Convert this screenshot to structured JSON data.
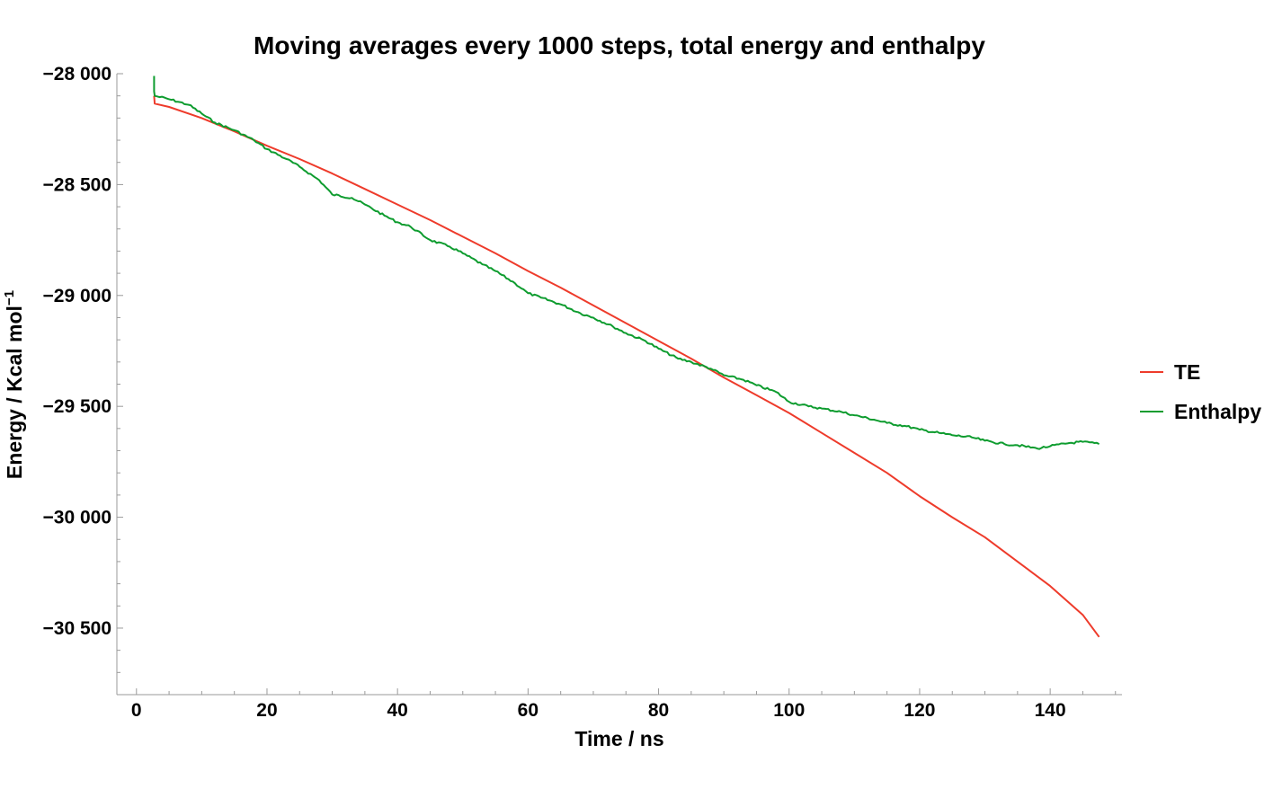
{
  "chart_data": {
    "type": "line",
    "title": "Moving averages every 1000 steps, total energy and enthalpy",
    "xlabel": "Time / ns",
    "ylabel": "Energy / Kcal mol",
    "ylabel_superscript": "−1",
    "xlim": [
      -3,
      151
    ],
    "ylim": [
      -30800,
      -28000
    ],
    "xticks": [
      {
        "value": 0,
        "label": "0"
      },
      {
        "value": 20,
        "label": "20"
      },
      {
        "value": 40,
        "label": "40"
      },
      {
        "value": 60,
        "label": "60"
      },
      {
        "value": 80,
        "label": "80"
      },
      {
        "value": 100,
        "label": "100"
      },
      {
        "value": 120,
        "label": "120"
      },
      {
        "value": 140,
        "label": "140"
      }
    ],
    "yticks": [
      {
        "value": -28000,
        "label": "−28 000"
      },
      {
        "value": -28500,
        "label": "−28 500"
      },
      {
        "value": -29000,
        "label": "−29 000"
      },
      {
        "value": -29500,
        "label": "−29 500"
      },
      {
        "value": -30000,
        "label": "−30 000"
      },
      {
        "value": -30500,
        "label": "−30 500"
      }
    ],
    "legend_position": "right",
    "grid": false,
    "series": [
      {
        "name": "TE",
        "color": "#ee3b2b",
        "x": [
          2.7,
          2.8,
          5,
          10,
          15,
          20,
          25,
          30,
          35,
          40,
          45,
          50,
          55,
          60,
          65,
          70,
          75,
          80,
          85,
          90,
          95,
          100,
          105,
          110,
          115,
          120,
          125,
          130,
          135,
          140,
          145,
          147.5
        ],
        "y": [
          -28100,
          -28135,
          -28150,
          -28200,
          -28260,
          -28325,
          -28385,
          -28450,
          -28520,
          -28590,
          -28660,
          -28735,
          -28810,
          -28890,
          -28965,
          -29045,
          -29125,
          -29205,
          -29285,
          -29370,
          -29450,
          -29530,
          -29620,
          -29710,
          -29800,
          -29905,
          -30000,
          -30090,
          -30200,
          -30310,
          -30440,
          -30540
        ]
      },
      {
        "name": "Enthalpy",
        "color": "#0e9c2f",
        "x": [
          2.7,
          2.7,
          2.8,
          5,
          8,
          10,
          12,
          15,
          18,
          20,
          23,
          25,
          28,
          30,
          33,
          35,
          38,
          40,
          42,
          45,
          48,
          50,
          53,
          55,
          58,
          60,
          62,
          65,
          68,
          70,
          73,
          75,
          78,
          80,
          83,
          85,
          88,
          90,
          93,
          95,
          98,
          100,
          103,
          105,
          108,
          110,
          113,
          115,
          118,
          120,
          123,
          125,
          128,
          130,
          133,
          135,
          138,
          140,
          143,
          145,
          147.5
        ],
        "y": [
          -28010,
          -28080,
          -28100,
          -28115,
          -28140,
          -28180,
          -28220,
          -28255,
          -28300,
          -28340,
          -28385,
          -28420,
          -28480,
          -28545,
          -28560,
          -28590,
          -28640,
          -28670,
          -28690,
          -28750,
          -28780,
          -28810,
          -28860,
          -28890,
          -28945,
          -28990,
          -29010,
          -29040,
          -29080,
          -29100,
          -29140,
          -29170,
          -29205,
          -29240,
          -29285,
          -29300,
          -29330,
          -29360,
          -29380,
          -29405,
          -29435,
          -29480,
          -29500,
          -29510,
          -29525,
          -29540,
          -29560,
          -29575,
          -29590,
          -29605,
          -29620,
          -29630,
          -29640,
          -29655,
          -29670,
          -29675,
          -29690,
          -29680,
          -29665,
          -29660,
          -29670
        ]
      }
    ]
  }
}
